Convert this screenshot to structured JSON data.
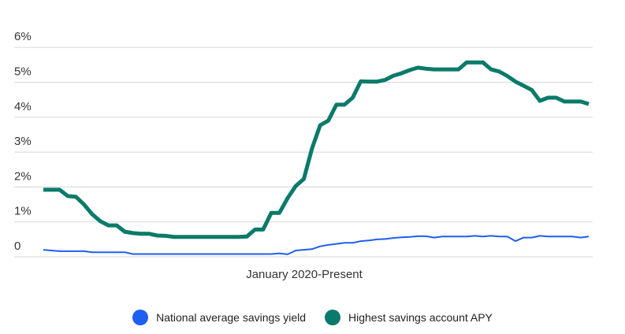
{
  "chart_data": {
    "type": "line",
    "title": "",
    "xlabel": "January 2020-Present",
    "ylabel": "",
    "ylim": [
      0,
      6
    ],
    "y_ticks": [
      "0",
      "1%",
      "2%",
      "3%",
      "4%",
      "5%",
      "6%"
    ],
    "grid": true,
    "legend_position": "bottom",
    "series": [
      {
        "name": "National average savings yield",
        "color": "#1E5EF0",
        "values": [
          0.2,
          0.18,
          0.16,
          0.16,
          0.16,
          0.16,
          0.13,
          0.13,
          0.13,
          0.13,
          0.13,
          0.08,
          0.08,
          0.08,
          0.08,
          0.08,
          0.08,
          0.08,
          0.08,
          0.08,
          0.08,
          0.08,
          0.08,
          0.08,
          0.08,
          0.08,
          0.08,
          0.08,
          0.08,
          0.1,
          0.07,
          0.18,
          0.2,
          0.22,
          0.3,
          0.34,
          0.37,
          0.4,
          0.4,
          0.45,
          0.47,
          0.5,
          0.51,
          0.54,
          0.56,
          0.57,
          0.59,
          0.59,
          0.55,
          0.58,
          0.58,
          0.58,
          0.58,
          0.6,
          0.58,
          0.6,
          0.58,
          0.58,
          0.45,
          0.55,
          0.55,
          0.6,
          0.58,
          0.58,
          0.58,
          0.58,
          0.55,
          0.58
        ]
      },
      {
        "name": "Highest savings account APY",
        "color": "#0B7A6A",
        "values": [
          1.92,
          1.92,
          1.92,
          1.74,
          1.72,
          1.5,
          1.22,
          1.02,
          0.9,
          0.9,
          0.72,
          0.68,
          0.66,
          0.66,
          0.61,
          0.6,
          0.57,
          0.57,
          0.57,
          0.57,
          0.57,
          0.57,
          0.57,
          0.57,
          0.57,
          0.58,
          0.78,
          0.78,
          1.26,
          1.26,
          1.68,
          2.03,
          2.23,
          3.1,
          3.77,
          3.9,
          4.36,
          4.36,
          4.56,
          5.03,
          5.02,
          5.02,
          5.07,
          5.19,
          5.26,
          5.35,
          5.42,
          5.39,
          5.37,
          5.37,
          5.37,
          5.37,
          5.57,
          5.57,
          5.57,
          5.37,
          5.31,
          5.18,
          5.02,
          4.9,
          4.78,
          4.47,
          4.56,
          4.56,
          4.45,
          4.45,
          4.45,
          4.38
        ]
      }
    ]
  }
}
